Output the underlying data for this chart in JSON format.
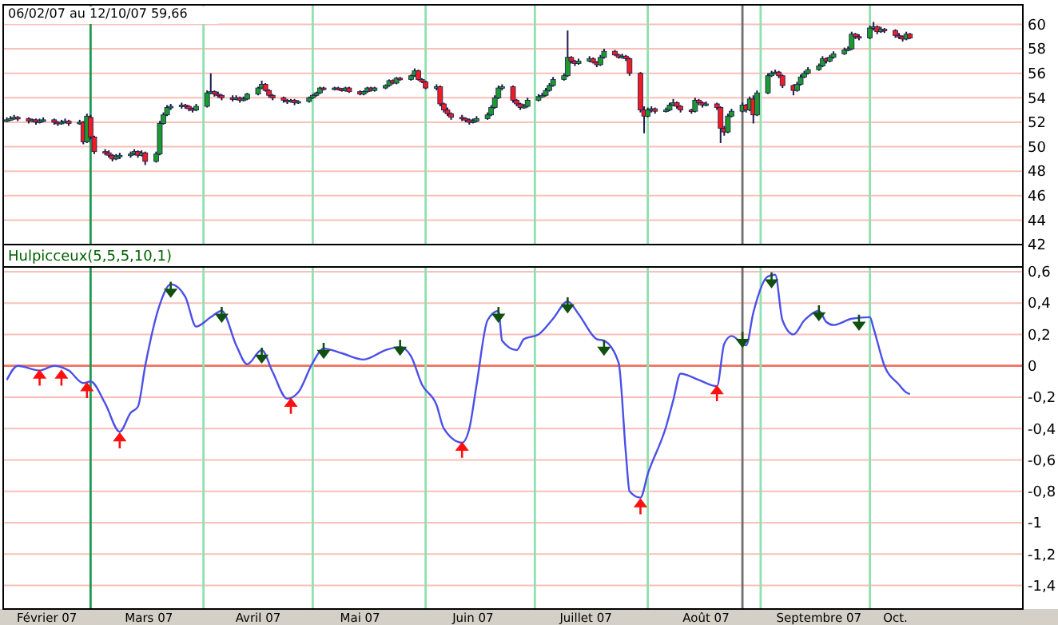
{
  "chart_data": [
    {
      "type": "candlestick",
      "title": "06/02/07 au 12/10/07 59,66",
      "tick_labels": "y",
      "grid": "y",
      "xlim": [
        "2007-02-05",
        "2007-11-12"
      ],
      "ylim": [
        42,
        61.6
      ],
      "yticks": [
        42,
        44,
        46,
        48,
        50,
        52,
        54,
        56,
        58,
        60
      ],
      "ref_lines": [
        {
          "axis": "x",
          "value": "2007-03-01",
          "color": "#1e9a50"
        },
        {
          "axis": "x",
          "value": "2007-04-01",
          "color": "#90e0b0"
        },
        {
          "axis": "x",
          "value": "2007-05-01",
          "color": "#90e0b0"
        },
        {
          "axis": "x",
          "value": "2007-06-01",
          "color": "#90e0b0"
        },
        {
          "axis": "x",
          "value": "2007-07-01",
          "color": "#90e0b0"
        },
        {
          "axis": "x",
          "value": "2007-08-01",
          "color": "#90e0b0"
        },
        {
          "axis": "x",
          "value": "2007-08-27",
          "color": "#707070"
        },
        {
          "axis": "x",
          "value": "2007-09-01",
          "color": "#90e0b0"
        },
        {
          "axis": "x",
          "value": "2007-10-01",
          "color": "#90e0b0"
        }
      ],
      "x": [
        "2007-02-06",
        "2007-02-07",
        "2007-02-08",
        "2007-02-09",
        "2007-02-12",
        "2007-02-13",
        "2007-02-14",
        "2007-02-15",
        "2007-02-16",
        "2007-02-19",
        "2007-02-20",
        "2007-02-21",
        "2007-02-22",
        "2007-02-23",
        "2007-02-26",
        "2007-02-27",
        "2007-02-28",
        "2007-03-01",
        "2007-03-02",
        "2007-03-05",
        "2007-03-06",
        "2007-03-07",
        "2007-03-08",
        "2007-03-09",
        "2007-03-12",
        "2007-03-13",
        "2007-03-14",
        "2007-03-15",
        "2007-03-16",
        "2007-03-19",
        "2007-03-20",
        "2007-03-21",
        "2007-03-22",
        "2007-03-23",
        "2007-03-26",
        "2007-03-27",
        "2007-03-28",
        "2007-03-29",
        "2007-03-30",
        "2007-04-02",
        "2007-04-03",
        "2007-04-04",
        "2007-04-05",
        "2007-04-06",
        "2007-04-09",
        "2007-04-10",
        "2007-04-11",
        "2007-04-12",
        "2007-04-13",
        "2007-04-16",
        "2007-04-17",
        "2007-04-18",
        "2007-04-19",
        "2007-04-20",
        "2007-04-23",
        "2007-04-24",
        "2007-04-25",
        "2007-04-26",
        "2007-04-27",
        "2007-04-30",
        "2007-05-01",
        "2007-05-02",
        "2007-05-03",
        "2007-05-04",
        "2007-05-07",
        "2007-05-08",
        "2007-05-09",
        "2007-05-10",
        "2007-05-11",
        "2007-05-14",
        "2007-05-15",
        "2007-05-16",
        "2007-05-17",
        "2007-05-18",
        "2007-05-21",
        "2007-05-22",
        "2007-05-23",
        "2007-05-24",
        "2007-05-25",
        "2007-05-28",
        "2007-05-29",
        "2007-05-30",
        "2007-05-31",
        "2007-06-01",
        "2007-06-04",
        "2007-06-05",
        "2007-06-06",
        "2007-06-07",
        "2007-06-08",
        "2007-06-11",
        "2007-06-12",
        "2007-06-13",
        "2007-06-14",
        "2007-06-15",
        "2007-06-18",
        "2007-06-19",
        "2007-06-20",
        "2007-06-21",
        "2007-06-22",
        "2007-06-25",
        "2007-06-26",
        "2007-06-27",
        "2007-06-28",
        "2007-06-29",
        "2007-07-02",
        "2007-07-03",
        "2007-07-04",
        "2007-07-05",
        "2007-07-06",
        "2007-07-09",
        "2007-07-10",
        "2007-07-11",
        "2007-07-12",
        "2007-07-13",
        "2007-07-16",
        "2007-07-17",
        "2007-07-18",
        "2007-07-19",
        "2007-07-20",
        "2007-07-23",
        "2007-07-24",
        "2007-07-25",
        "2007-07-26",
        "2007-07-27",
        "2007-07-30",
        "2007-07-31",
        "2007-08-01",
        "2007-08-02",
        "2007-08-03",
        "2007-08-06",
        "2007-08-07",
        "2007-08-08",
        "2007-08-09",
        "2007-08-10",
        "2007-08-13",
        "2007-08-14",
        "2007-08-15",
        "2007-08-16",
        "2007-08-17",
        "2007-08-20",
        "2007-08-21",
        "2007-08-22",
        "2007-08-23",
        "2007-08-24",
        "2007-08-27",
        "2007-08-28",
        "2007-08-29",
        "2007-08-30",
        "2007-08-31",
        "2007-09-03",
        "2007-09-04",
        "2007-09-05",
        "2007-09-06",
        "2007-09-07",
        "2007-09-10",
        "2007-09-11",
        "2007-09-12",
        "2007-09-13",
        "2007-09-14",
        "2007-09-17",
        "2007-09-18",
        "2007-09-19",
        "2007-09-20",
        "2007-09-21",
        "2007-09-24",
        "2007-09-25",
        "2007-09-26",
        "2007-09-27",
        "2007-09-28",
        "2007-10-01",
        "2007-10-02",
        "2007-10-03",
        "2007-10-04",
        "2007-10-05",
        "2007-10-08",
        "2007-10-09",
        "2007-10-10",
        "2007-10-11",
        "2007-10-12"
      ],
      "ohlc": [
        [
          52.1,
          52.4,
          52.0,
          52.2
        ],
        [
          52.2,
          52.5,
          52.1,
          52.3
        ],
        [
          52.3,
          52.6,
          52.2,
          52.4
        ],
        [
          52.4,
          52.5,
          52.1,
          52.3
        ],
        [
          52.3,
          52.4,
          51.9,
          52.1
        ],
        [
          52.1,
          52.3,
          52.0,
          52.2
        ],
        [
          52.2,
          52.3,
          51.8,
          52.0
        ],
        [
          52.0,
          52.3,
          51.9,
          52.1
        ],
        [
          52.1,
          52.4,
          52.0,
          52.2
        ],
        [
          52.2,
          52.3,
          51.8,
          52.0
        ],
        [
          52.0,
          52.1,
          51.7,
          51.9
        ],
        [
          51.9,
          52.2,
          51.8,
          52.0
        ],
        [
          52.0,
          52.3,
          51.9,
          52.1
        ],
        [
          52.1,
          52.2,
          51.7,
          51.9
        ],
        [
          51.9,
          52.2,
          51.8,
          52.0
        ],
        [
          52.0,
          52.1,
          50.2,
          50.4
        ],
        [
          50.4,
          52.7,
          50.3,
          52.5
        ],
        [
          52.4,
          52.6,
          50.6,
          50.8
        ],
        [
          50.8,
          50.9,
          49.4,
          49.6
        ],
        [
          49.6,
          49.8,
          49.3,
          49.5
        ],
        [
          49.5,
          49.7,
          49.1,
          49.3
        ],
        [
          49.3,
          49.4,
          48.8,
          49.0
        ],
        [
          49.0,
          49.4,
          48.9,
          49.2
        ],
        [
          49.2,
          49.5,
          49.0,
          49.3
        ],
        [
          49.3,
          49.6,
          49.1,
          49.4
        ],
        [
          49.4,
          49.8,
          49.3,
          49.6
        ],
        [
          49.6,
          49.7,
          49.1,
          49.3
        ],
        [
          49.3,
          49.7,
          49.2,
          49.5
        ],
        [
          49.5,
          49.6,
          48.5,
          48.8
        ],
        [
          48.8,
          49.6,
          48.7,
          49.4
        ],
        [
          49.4,
          52.1,
          49.3,
          51.9
        ],
        [
          51.9,
          52.8,
          51.8,
          52.6
        ],
        [
          52.6,
          53.4,
          52.5,
          53.2
        ],
        [
          53.2,
          53.5,
          53.0,
          53.3
        ],
        [
          53.3,
          53.6,
          53.1,
          53.4
        ],
        [
          53.4,
          53.5,
          53.1,
          53.3
        ],
        [
          53.3,
          53.4,
          52.9,
          53.1
        ],
        [
          53.1,
          53.2,
          52.8,
          53.0
        ],
        [
          53.0,
          53.5,
          52.9,
          53.3
        ],
        [
          53.3,
          54.6,
          53.2,
          54.4
        ],
        [
          54.4,
          56.0,
          54.3,
          54.5
        ],
        [
          54.5,
          54.6,
          54.1,
          54.3
        ],
        [
          54.3,
          54.5,
          54.0,
          54.2
        ],
        [
          54.2,
          54.3,
          53.8,
          54.0
        ],
        [
          54.0,
          54.2,
          53.7,
          53.9
        ],
        [
          53.9,
          54.2,
          53.8,
          54.0
        ],
        [
          54.0,
          54.1,
          53.6,
          53.8
        ],
        [
          53.8,
          54.1,
          53.7,
          53.9
        ],
        [
          53.9,
          54.4,
          53.8,
          54.3
        ],
        [
          54.3,
          54.9,
          54.2,
          54.8
        ],
        [
          54.8,
          55.4,
          54.7,
          55.1
        ],
        [
          55.1,
          55.2,
          54.5,
          54.6
        ],
        [
          54.6,
          54.7,
          54.0,
          54.2
        ],
        [
          54.2,
          54.3,
          53.8,
          54.0
        ],
        [
          54.0,
          54.1,
          53.6,
          53.8
        ],
        [
          53.8,
          53.9,
          53.5,
          53.7
        ],
        [
          53.7,
          53.9,
          53.6,
          53.8
        ],
        [
          53.8,
          53.9,
          53.4,
          53.6
        ],
        [
          53.6,
          53.8,
          53.5,
          53.7
        ],
        [
          53.7,
          54.1,
          53.6,
          54.0
        ],
        [
          54.0,
          54.3,
          53.9,
          54.2
        ],
        [
          54.2,
          54.5,
          54.1,
          54.4
        ],
        [
          54.4,
          54.9,
          54.3,
          54.8
        ],
        [
          54.8,
          54.9,
          54.6,
          54.7
        ],
        [
          54.7,
          54.9,
          54.6,
          54.8
        ],
        [
          54.8,
          54.9,
          54.6,
          54.7
        ],
        [
          54.7,
          54.8,
          54.5,
          54.6
        ],
        [
          54.6,
          54.9,
          54.5,
          54.8
        ],
        [
          54.8,
          54.9,
          54.4,
          54.5
        ],
        [
          54.5,
          54.6,
          54.2,
          54.3
        ],
        [
          54.3,
          54.6,
          54.2,
          54.5
        ],
        [
          54.5,
          54.9,
          54.4,
          54.8
        ],
        [
          54.8,
          54.9,
          54.5,
          54.6
        ],
        [
          54.6,
          54.9,
          54.5,
          54.8
        ],
        [
          54.8,
          55.1,
          54.7,
          55.0
        ],
        [
          55.0,
          55.5,
          54.9,
          55.4
        ],
        [
          55.4,
          55.5,
          55.1,
          55.2
        ],
        [
          55.2,
          55.7,
          55.1,
          55.6
        ],
        [
          55.6,
          55.7,
          55.4,
          55.5
        ],
        [
          55.5,
          55.9,
          55.4,
          55.8
        ],
        [
          55.8,
          56.4,
          55.7,
          56.2
        ],
        [
          56.2,
          56.3,
          55.4,
          55.5
        ],
        [
          55.5,
          55.6,
          55.2,
          55.3
        ],
        [
          55.3,
          55.4,
          54.7,
          54.8
        ],
        [
          54.8,
          55.1,
          54.6,
          54.9
        ],
        [
          54.9,
          55.0,
          53.3,
          53.5
        ],
        [
          53.5,
          53.6,
          52.8,
          53.0
        ],
        [
          53.0,
          53.2,
          52.5,
          52.7
        ],
        [
          52.7,
          52.8,
          52.2,
          52.4
        ],
        [
          52.4,
          52.6,
          52.1,
          52.3
        ],
        [
          52.3,
          52.4,
          52.0,
          52.2
        ],
        [
          52.2,
          52.3,
          51.8,
          52.0
        ],
        [
          52.0,
          52.3,
          51.9,
          52.1
        ],
        [
          52.1,
          52.5,
          52.0,
          52.3
        ],
        [
          52.3,
          52.8,
          52.2,
          52.6
        ],
        [
          52.6,
          53.4,
          52.5,
          53.2
        ],
        [
          53.2,
          54.2,
          53.1,
          54.0
        ],
        [
          54.0,
          55.0,
          53.9,
          54.8
        ],
        [
          54.8,
          55.1,
          54.6,
          54.9
        ],
        [
          54.9,
          55.0,
          53.6,
          53.8
        ],
        [
          53.8,
          53.9,
          53.3,
          53.5
        ],
        [
          53.5,
          53.6,
          53.0,
          53.2
        ],
        [
          53.2,
          53.5,
          53.1,
          53.3
        ],
        [
          53.3,
          54.0,
          53.2,
          53.8
        ],
        [
          53.8,
          54.3,
          53.7,
          54.1
        ],
        [
          54.1,
          54.4,
          54.0,
          54.2
        ],
        [
          54.2,
          54.8,
          54.1,
          54.6
        ],
        [
          54.6,
          55.2,
          54.5,
          55.0
        ],
        [
          55.0,
          55.7,
          54.9,
          55.5
        ],
        [
          55.5,
          56.0,
          55.4,
          55.8
        ],
        [
          55.8,
          59.5,
          55.7,
          57.3
        ],
        [
          57.3,
          57.4,
          56.8,
          57.0
        ],
        [
          57.0,
          57.1,
          56.6,
          56.8
        ],
        [
          56.8,
          57.2,
          56.7,
          57.0
        ],
        [
          57.0,
          57.4,
          56.9,
          57.2
        ],
        [
          57.2,
          57.3,
          56.8,
          56.9
        ],
        [
          56.9,
          57.0,
          56.5,
          56.7
        ],
        [
          56.7,
          57.5,
          56.6,
          57.3
        ],
        [
          57.3,
          58.0,
          57.2,
          57.8
        ],
        [
          57.8,
          57.9,
          57.4,
          57.5
        ],
        [
          57.5,
          57.6,
          57.2,
          57.3
        ],
        [
          57.3,
          57.6,
          57.2,
          57.4
        ],
        [
          57.4,
          57.5,
          57.0,
          57.2
        ],
        [
          57.2,
          57.3,
          55.8,
          56.0
        ],
        [
          56.0,
          56.1,
          52.8,
          53.0
        ],
        [
          53.0,
          53.3,
          51.1,
          52.5
        ],
        [
          52.5,
          53.2,
          52.4,
          53.0
        ],
        [
          53.0,
          53.3,
          52.8,
          53.1
        ],
        [
          53.1,
          53.2,
          52.7,
          52.9
        ],
        [
          52.9,
          53.2,
          52.8,
          53.0
        ],
        [
          53.0,
          53.6,
          52.9,
          53.4
        ],
        [
          53.4,
          53.9,
          53.3,
          53.6
        ],
        [
          53.6,
          53.7,
          53.1,
          53.3
        ],
        [
          53.3,
          53.4,
          52.8,
          53.0
        ],
        [
          53.0,
          53.1,
          52.7,
          52.9
        ],
        [
          52.9,
          54.0,
          52.8,
          53.8
        ],
        [
          53.8,
          53.9,
          53.4,
          53.6
        ],
        [
          53.6,
          53.7,
          53.2,
          53.4
        ],
        [
          53.4,
          53.7,
          53.3,
          53.5
        ],
        [
          53.5,
          53.6,
          53.0,
          53.2
        ],
        [
          53.2,
          53.3,
          50.3,
          51.5
        ],
        [
          51.5,
          51.7,
          50.9,
          51.2
        ],
        [
          51.2,
          52.7,
          51.1,
          52.5
        ],
        [
          52.5,
          53.1,
          52.4,
          52.9
        ],
        [
          52.9,
          53.6,
          52.8,
          53.4
        ],
        [
          53.4,
          53.5,
          52.8,
          53.0
        ],
        [
          53.0,
          54.1,
          52.9,
          53.9
        ],
        [
          53.9,
          54.2,
          51.9,
          52.6
        ],
        [
          52.6,
          54.6,
          52.5,
          54.4
        ],
        [
          54.4,
          56.0,
          54.3,
          55.8
        ],
        [
          55.8,
          56.2,
          55.7,
          56.0
        ],
        [
          56.0,
          56.3,
          55.9,
          56.1
        ],
        [
          56.1,
          56.2,
          55.6,
          55.8
        ],
        [
          55.8,
          55.9,
          54.8,
          55.0
        ],
        [
          55.0,
          55.1,
          54.2,
          54.6
        ],
        [
          54.6,
          55.3,
          54.5,
          55.1
        ],
        [
          55.1,
          55.9,
          55.0,
          55.7
        ],
        [
          55.7,
          56.2,
          55.6,
          56.0
        ],
        [
          56.0,
          56.5,
          55.9,
          56.3
        ],
        [
          56.3,
          56.8,
          56.2,
          56.6
        ],
        [
          56.6,
          57.4,
          56.5,
          57.2
        ],
        [
          57.2,
          57.3,
          56.8,
          57.0
        ],
        [
          57.0,
          57.5,
          56.9,
          57.3
        ],
        [
          57.3,
          57.8,
          57.2,
          57.6
        ],
        [
          57.6,
          58.1,
          57.5,
          57.9
        ],
        [
          57.9,
          58.2,
          57.8,
          58.0
        ],
        [
          58.0,
          59.4,
          57.9,
          59.2
        ],
        [
          59.2,
          59.3,
          58.8,
          59.0
        ],
        [
          59.0,
          59.2,
          58.7,
          58.9
        ],
        [
          58.9,
          59.9,
          58.8,
          59.7
        ],
        [
          59.7,
          60.2,
          59.5,
          59.8
        ],
        [
          59.8,
          59.9,
          59.2,
          59.4
        ],
        [
          59.4,
          59.8,
          59.3,
          59.6
        ],
        [
          59.6,
          59.7,
          59.3,
          59.5
        ],
        [
          59.5,
          59.6,
          58.9,
          59.1
        ],
        [
          59.1,
          59.3,
          58.8,
          59.0
        ],
        [
          59.0,
          59.1,
          58.6,
          58.8
        ],
        [
          58.8,
          59.4,
          58.7,
          59.2
        ],
        [
          59.2,
          59.3,
          58.8,
          58.9
        ]
      ]
    },
    {
      "type": "line",
      "title": "Hulpicceux(5,5,5,10,1)",
      "grid": "y",
      "xlim": [
        "2007-02-05",
        "2007-11-12"
      ],
      "xticks": [
        {
          "value": "2007-02-17",
          "label": "Février 07"
        },
        {
          "value": "2007-03-17",
          "label": "Mars 07"
        },
        {
          "value": "2007-04-16",
          "label": "Avril 07"
        },
        {
          "value": "2007-05-14",
          "label": "Mai 07"
        },
        {
          "value": "2007-06-14",
          "label": "Juin 07"
        },
        {
          "value": "2007-07-15",
          "label": "Juillet 07"
        },
        {
          "value": "2007-08-17",
          "label": "Août 07"
        },
        {
          "value": "2007-09-17",
          "label": "Septembre 07"
        },
        {
          "value": "2007-10-08",
          "label": "Oct."
        }
      ],
      "ylim": [
        -1.55,
        0.63
      ],
      "yticks": [
        {
          "value": 0.6,
          "label": "0,6"
        },
        {
          "value": 0.4,
          "label": "0,4"
        },
        {
          "value": 0.2,
          "label": "0,2"
        },
        0,
        {
          "value": -0.2,
          "label": "-0,2"
        },
        {
          "value": -0.4,
          "label": "-0,4"
        },
        {
          "value": -0.6,
          "label": "-0,6"
        },
        {
          "value": -0.8,
          "label": "-0,8"
        },
        -1,
        {
          "value": -1.2,
          "label": "-1,2"
        },
        {
          "value": -1.4,
          "label": "-1,4"
        }
      ],
      "ref_lines": [
        {
          "axis": "y",
          "value": 0,
          "color": "#f07060"
        },
        {
          "axis": "x",
          "value": "2007-03-01",
          "color": "#1e9a50"
        },
        {
          "axis": "x",
          "value": "2007-04-01",
          "color": "#90e0b0"
        },
        {
          "axis": "x",
          "value": "2007-05-01",
          "color": "#90e0b0"
        },
        {
          "axis": "x",
          "value": "2007-06-01",
          "color": "#90e0b0"
        },
        {
          "axis": "x",
          "value": "2007-07-01",
          "color": "#90e0b0"
        },
        {
          "axis": "x",
          "value": "2007-08-01",
          "color": "#90e0b0"
        },
        {
          "axis": "x",
          "value": "2007-08-27",
          "color": "#707070"
        },
        {
          "axis": "x",
          "value": "2007-09-01",
          "color": "#90e0b0"
        },
        {
          "axis": "x",
          "value": "2007-10-01",
          "color": "#90e0b0"
        }
      ],
      "series": [
        {
          "color": "#4a50e8",
          "x": [
            "2007-02-06",
            "2007-02-09",
            "2007-02-15",
            "2007-02-19",
            "2007-02-23",
            "2007-02-27",
            "2007-03-01",
            "2007-03-05",
            "2007-03-09",
            "2007-03-12",
            "2007-03-14",
            "2007-03-16",
            "2007-03-20",
            "2007-03-23",
            "2007-03-27",
            "2007-03-30",
            "2007-04-03",
            "2007-04-06",
            "2007-04-10",
            "2007-04-13",
            "2007-04-17",
            "2007-04-20",
            "2007-04-24",
            "2007-04-27",
            "2007-05-01",
            "2007-05-04",
            "2007-05-09",
            "2007-05-15",
            "2007-05-21",
            "2007-05-25",
            "2007-05-28",
            "2007-05-31",
            "2007-06-04",
            "2007-06-06",
            "2007-06-11",
            "2007-06-13",
            "2007-06-15",
            "2007-06-18",
            "2007-06-21",
            "2007-06-22",
            "2007-06-26",
            "2007-06-28",
            "2007-07-02",
            "2007-07-06",
            "2007-07-10",
            "2007-07-13",
            "2007-07-18",
            "2007-07-20",
            "2007-07-24",
            "2007-07-26",
            "2007-07-27",
            "2007-07-30",
            "2007-08-01",
            "2007-08-06",
            "2007-08-08",
            "2007-08-10",
            "2007-08-15",
            "2007-08-20",
            "2007-08-22",
            "2007-08-24",
            "2007-08-28",
            "2007-08-30",
            "2007-09-03",
            "2007-09-05",
            "2007-09-07",
            "2007-09-10",
            "2007-09-13",
            "2007-09-17",
            "2007-09-19",
            "2007-09-21",
            "2007-09-26",
            "2007-10-01",
            "2007-10-02",
            "2007-10-05",
            "2007-10-09",
            "2007-10-11",
            "2007-10-12"
          ],
          "values": [
            -0.09,
            0,
            -0.03,
            0,
            -0.03,
            -0.11,
            -0.1,
            -0.24,
            -0.42,
            -0.3,
            -0.26,
            0,
            0.39,
            0.52,
            0.44,
            0.25,
            0.31,
            0.35,
            0.13,
            0.01,
            0.1,
            -0.04,
            -0.21,
            -0.17,
            0.02,
            0.11,
            0.08,
            0.04,
            0.1,
            0.12,
            0.06,
            -0.12,
            -0.25,
            -0.4,
            -0.49,
            -0.4,
            -0.12,
            0.29,
            0.35,
            0.16,
            0.1,
            0.17,
            0.2,
            0.3,
            0.41,
            0.33,
            0.17,
            0.16,
            0.02,
            -0.56,
            -0.8,
            -0.84,
            -0.69,
            -0.39,
            -0.22,
            -0.05,
            -0.09,
            -0.13,
            0.14,
            0.19,
            0.13,
            0.34,
            0.57,
            0.58,
            0.29,
            0.2,
            0.29,
            0.35,
            0.28,
            0.26,
            0.3,
            0.31,
            0.24,
            0,
            -0.12,
            -0.17,
            -0.18
          ]
        },
        {
          "type": "scatter",
          "color": "#ff1010",
          "x": [
            "2007-02-15",
            "2007-02-21",
            "2007-02-28",
            "2007-03-09",
            "2007-04-25",
            "2007-06-11",
            "2007-07-30",
            "2007-08-20"
          ],
          "values": [
            -0.08,
            -0.08,
            -0.16,
            -0.48,
            -0.26,
            -0.54,
            -0.9,
            -0.18
          ]
        },
        {
          "type": "scatter",
          "color": "#105010",
          "x": [
            "2007-03-23",
            "2007-04-06",
            "2007-04-17",
            "2007-05-04",
            "2007-05-25",
            "2007-06-21",
            "2007-07-10",
            "2007-07-20",
            "2007-08-27",
            "2007-09-04",
            "2007-09-17",
            "2007-09-28"
          ],
          "values": [
            0.49,
            0.33,
            0.07,
            0.1,
            0.12,
            0.33,
            0.39,
            0.12,
            0.17,
            0.55,
            0.34,
            0.28
          ]
        }
      ]
    }
  ]
}
